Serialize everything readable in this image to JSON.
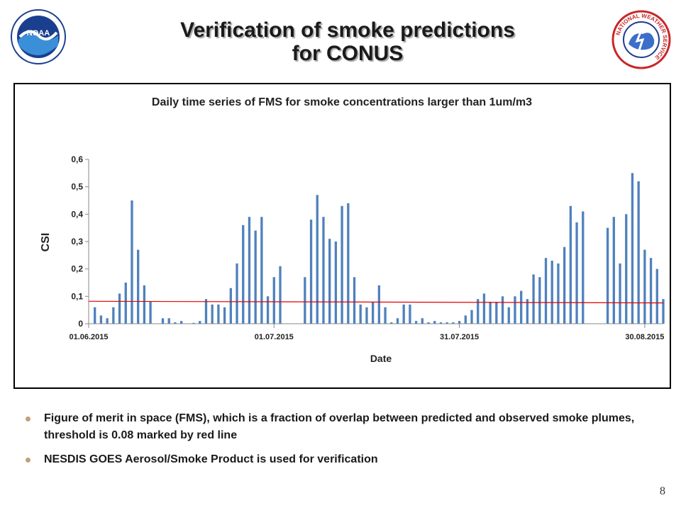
{
  "slide": {
    "title_line1": "Verification of smoke predictions",
    "title_line2": "for CONUS",
    "page_number": "8"
  },
  "logos": {
    "left": "NOAA",
    "right": "NATIONAL WEATHER SERVICE"
  },
  "bullets": [
    "Figure of merit in space (FMS), which is a fraction of overlap between predicted and observed smoke plumes, threshold is 0.08 marked by red line",
    "NESDIS GOES Aerosol/Smoke Product is used for verification"
  ],
  "colors": {
    "bar": "#4f81bd",
    "threshold_line": "#e00000",
    "bullet": "#c0a07a"
  },
  "chart_data": {
    "type": "bar",
    "title": "Daily time series of FMS for smoke concentrations larger than 1um/m3",
    "xlabel": "Date",
    "ylabel": "CSI",
    "ylim": [
      0,
      0.6
    ],
    "yticks": [
      "0",
      "0,1",
      "0,2",
      "0,3",
      "0,4",
      "0,5",
      "0,6"
    ],
    "xticks": [
      "01.06.2015",
      "01.07.2015",
      "31.07.2015",
      "30.08.2015"
    ],
    "start_date": "01.06.2015",
    "grid": false,
    "threshold": {
      "start": 0.082,
      "end": 0.076,
      "label": "threshold 0.08"
    },
    "values": [
      0.06,
      0.03,
      0.02,
      0.06,
      0.11,
      0.15,
      0.45,
      0.27,
      0.14,
      0.08,
      0,
      0.02,
      0.02,
      0.005,
      0.01,
      0,
      0.003,
      0.01,
      0.09,
      0.07,
      0.07,
      0.06,
      0.13,
      0.22,
      0.36,
      0.39,
      0.34,
      0.39,
      0.1,
      0.17,
      0.21,
      0,
      0,
      0,
      0.17,
      0.38,
      0.47,
      0.39,
      0.31,
      0.3,
      0.43,
      0.44,
      0.17,
      0.07,
      0.06,
      0.08,
      0.14,
      0.06,
      0.005,
      0.02,
      0.07,
      0.07,
      0.01,
      0.02,
      0.005,
      0.01,
      0.005,
      0.005,
      0.005,
      0.01,
      0.03,
      0.05,
      0.09,
      0.11,
      0.08,
      0.08,
      0.1,
      0.06,
      0.1,
      0.12,
      0.09,
      0.18,
      0.17,
      0.24,
      0.23,
      0.22,
      0.28,
      0.43,
      0.37,
      0.41,
      0,
      0,
      0,
      0.35,
      0.39,
      0.22,
      0.4,
      0.55,
      0.52,
      0.27,
      0.24,
      0.2,
      0.09
    ]
  }
}
